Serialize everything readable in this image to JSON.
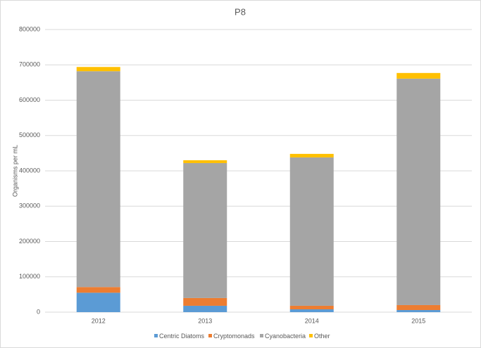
{
  "chart_data": {
    "type": "stacked_bar",
    "title": "P8",
    "y_label": "Organisms per mL",
    "categories": [
      "2012",
      "2013",
      "2014",
      "2015"
    ],
    "series": [
      {
        "name": "Centric Diatoms",
        "color": "#5b9bd5",
        "values": [
          55000,
          18000,
          8000,
          6000
        ]
      },
      {
        "name": "Cryptomonads",
        "color": "#ed7d31",
        "values": [
          16000,
          22000,
          10000,
          14000
        ]
      },
      {
        "name": "Cyanobacteria",
        "color": "#a5a5a5",
        "values": [
          611000,
          382000,
          420000,
          641000
        ]
      },
      {
        "name": "Other",
        "color": "#ffc000",
        "values": [
          12000,
          8000,
          10000,
          16000
        ]
      }
    ],
    "ylim": [
      0,
      800000
    ],
    "yticks": [
      0,
      100000,
      200000,
      300000,
      400000,
      500000,
      600000,
      700000,
      800000
    ],
    "grid": true,
    "legend": "bottom"
  }
}
